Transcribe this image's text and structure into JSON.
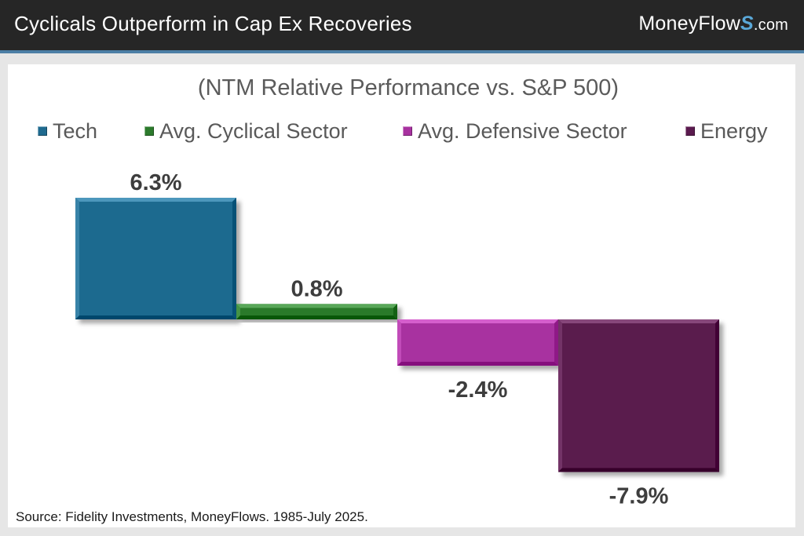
{
  "header": {
    "title": "Cyclicals Outperform in Cap Ex Recoveries",
    "brand_main": "MoneyFlow",
    "brand_s": "S",
    "brand_domain": ".com"
  },
  "colors": {
    "header_bg": "#262626",
    "accent_line": "#4c7fa6",
    "tech": "#1f6a8f",
    "cyclical": "#2c7a2c",
    "defensive": "#a832a0",
    "energy": "#5a1a4e"
  },
  "chart_data": {
    "type": "bar",
    "title": "(NTM Relative Performance vs. S&P 500)",
    "xlabel": "",
    "ylabel": "",
    "ylim": [
      -8.5,
      7
    ],
    "grid": false,
    "legend_position": "top",
    "series": [
      {
        "name": "Tech",
        "value": 6.3,
        "label": "6.3%",
        "color": "#1f6a8f"
      },
      {
        "name": "Avg. Cyclical Sector",
        "value": 0.8,
        "label": "0.8%",
        "color": "#2c7a2c"
      },
      {
        "name": "Avg. Defensive Sector",
        "value": -2.4,
        "label": "-2.4%",
        "color": "#a832a0"
      },
      {
        "name": "Energy",
        "value": -7.9,
        "label": "-7.9%",
        "color": "#5a1a4e"
      }
    ]
  },
  "footer": {
    "source": "Source: Fidelity Investments, MoneyFlows. 1985-July 2025."
  }
}
